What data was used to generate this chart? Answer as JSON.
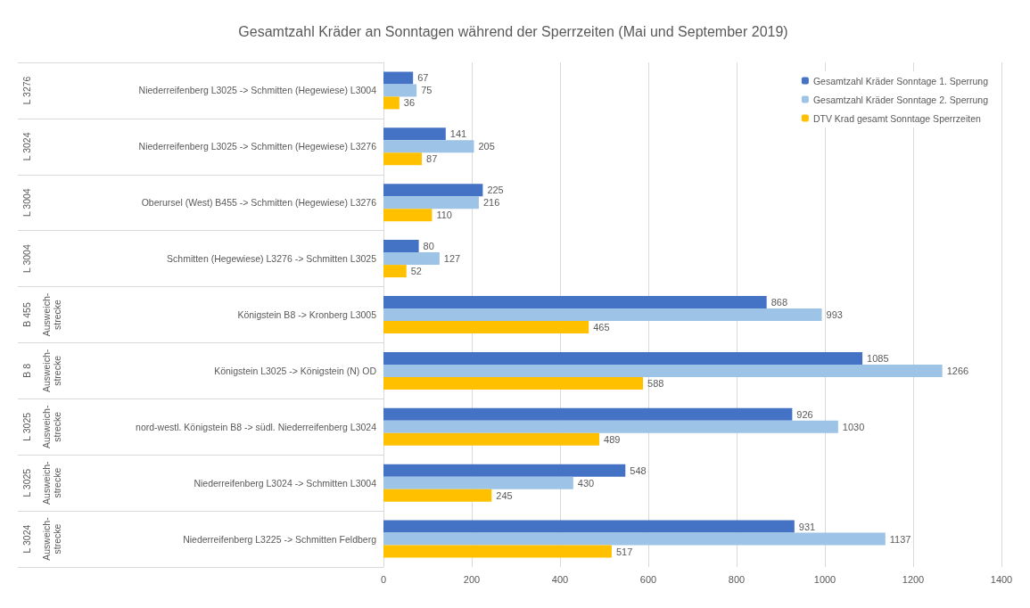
{
  "chart_data": {
    "type": "bar",
    "orientation": "horizontal",
    "title": "Gesamtzahl Kräder an Sonntagen während der Sperrzeiten (Mai und September 2019)",
    "categories": [
      "L 3276\nNiederreifenberg L3025 -> Schmitten (Hegewiese) L3004",
      "L 3024\nNiederreifenberg L3025 -> Schmitten (Hegewiese) L3276",
      "L 3004\nOberursel (West) B455 -> Schmitten (Hegewiese) L3276",
      "L 3004\nSchmitten (Hegewiese) L3276 -> Schmitten L3025",
      "B 455\nAusweich-strecke\nKönigstein B8 -> Kronberg L3005",
      "B 8\nAusweich-strecke\nKönigstein L3025 -> Königstein (N) OD",
      "L 3025\nAusweich-strecke\nnord-westl. Königstein B8 -> südl. Niederreifenberg L3024",
      "L 3025\nAusweich-strecke\nNiederreifenberg L3024 -> Schmitten L3004",
      "L 3024\nAusweich-strecke\nNiederreifenberg L3225 -> Schmitten Feldberg"
    ],
    "series": [
      {
        "name": "Gesamtzahl Kräder Sonntage 1. Sperrung",
        "color": "#4472c4",
        "values": [
          67,
          141,
          225,
          80,
          868,
          1085,
          926,
          548,
          931
        ]
      },
      {
        "name": "Gesamtzahl Kräder Sonntage 2. Sperrung",
        "color": "#9dc3e6",
        "values": [
          75,
          205,
          216,
          127,
          993,
          1266,
          1030,
          430,
          1137
        ]
      },
      {
        "name": "DTV Krad gesamt Sonntage Sperrzeiten",
        "color": "#ffc000",
        "values": [
          36,
          87,
          110,
          52,
          465,
          588,
          489,
          245,
          517
        ]
      }
    ],
    "xlim": [
      0,
      1400
    ],
    "xticks": [
      0,
      200,
      400,
      600,
      800,
      1000,
      1200,
      1400
    ],
    "grid": "x",
    "legend": "top right",
    "data_labels": true
  }
}
